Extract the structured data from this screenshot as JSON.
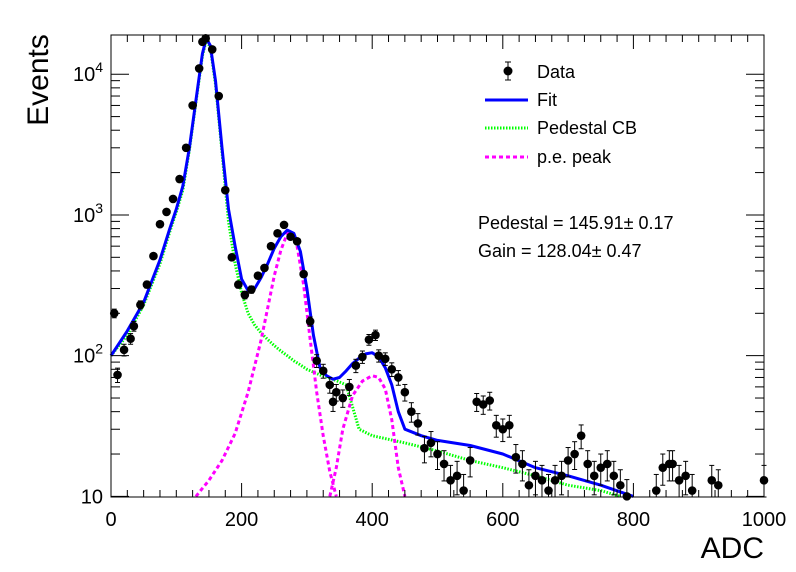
{
  "chart_data": {
    "type": "scatter",
    "xlabel": "ADC",
    "ylabel": "Events",
    "xlim": [
      0,
      1000
    ],
    "ylim": [
      9.9,
      19000
    ],
    "yscale": "log",
    "x_ticks": [
      "0",
      "200",
      "400",
      "600",
      "800",
      "1000"
    ],
    "y_ticks": [
      {
        "value": 10,
        "base": "10",
        "exp": ""
      },
      {
        "value": 100,
        "base": "10",
        "exp": "2"
      },
      {
        "value": 1000,
        "base": "10",
        "exp": "3"
      },
      {
        "value": 10000,
        "base": "10",
        "exp": "4"
      }
    ],
    "legend_position": "top-right",
    "legend": [
      {
        "label": "Data",
        "style": "marker",
        "color": "#000000"
      },
      {
        "label": "Fit",
        "style": "solid",
        "color": "#0000ff"
      },
      {
        "label": "Pedestal CB",
        "style": "dotted",
        "color": "#00ff00"
      },
      {
        "label": "p.e. peak",
        "style": "dashed",
        "color": "#ff00ff"
      }
    ],
    "annotations": [
      "Pedestal = 145.91± 0.17",
      "Gain = 128.04± 0.47"
    ],
    "series": [
      {
        "name": "Data",
        "type": "scatter",
        "color": "#000000",
        "points": [
          [
            5,
            200
          ],
          [
            10,
            73
          ],
          [
            20,
            110
          ],
          [
            30,
            132
          ],
          [
            35,
            162
          ],
          [
            45,
            230
          ],
          [
            55,
            320
          ],
          [
            65,
            510
          ],
          [
            75,
            860
          ],
          [
            85,
            1050
          ],
          [
            95,
            1300
          ],
          [
            105,
            1800
          ],
          [
            115,
            3000
          ],
          [
            125,
            6000
          ],
          [
            135,
            11000
          ],
          [
            140,
            17000
          ],
          [
            145,
            18000
          ],
          [
            155,
            15000
          ],
          [
            165,
            7000
          ],
          [
            175,
            1500
          ],
          [
            185,
            500
          ],
          [
            195,
            320
          ],
          [
            205,
            270
          ],
          [
            215,
            295
          ],
          [
            225,
            370
          ],
          [
            235,
            420
          ],
          [
            245,
            600
          ],
          [
            255,
            740
          ],
          [
            265,
            850
          ],
          [
            275,
            700
          ],
          [
            285,
            650
          ],
          [
            295,
            380
          ],
          [
            305,
            175
          ],
          [
            315,
            92
          ],
          [
            325,
            78
          ],
          [
            335,
            62
          ],
          [
            340,
            47
          ],
          [
            345,
            55
          ],
          [
            355,
            50
          ],
          [
            365,
            60
          ],
          [
            375,
            85
          ],
          [
            385,
            98
          ],
          [
            395,
            130
          ],
          [
            405,
            140
          ],
          [
            410,
            100
          ],
          [
            420,
            95
          ],
          [
            430,
            80
          ],
          [
            440,
            70
          ],
          [
            450,
            55
          ],
          [
            460,
            40
          ],
          [
            470,
            33
          ],
          [
            480,
            22
          ],
          [
            490,
            24
          ],
          [
            500,
            20
          ],
          [
            510,
            17
          ],
          [
            520,
            13
          ],
          [
            530,
            14
          ],
          [
            540,
            11
          ],
          [
            550,
            18
          ],
          [
            560,
            47
          ],
          [
            570,
            45
          ],
          [
            580,
            48
          ],
          [
            590,
            32
          ],
          [
            600,
            30
          ],
          [
            610,
            32
          ],
          [
            620,
            19
          ],
          [
            630,
            17
          ],
          [
            640,
            12
          ],
          [
            650,
            14
          ],
          [
            660,
            13
          ],
          [
            670,
            11
          ],
          [
            680,
            13
          ],
          [
            690,
            14
          ],
          [
            700,
            18
          ],
          [
            710,
            20
          ],
          [
            720,
            27
          ],
          [
            730,
            17
          ],
          [
            740,
            14
          ],
          [
            750,
            16
          ],
          [
            760,
            17
          ],
          [
            770,
            14
          ],
          [
            780,
            12
          ],
          [
            790,
            10
          ],
          [
            835,
            11
          ],
          [
            845,
            16
          ],
          [
            855,
            17
          ],
          [
            860,
            17
          ],
          [
            870,
            13
          ],
          [
            880,
            14
          ],
          [
            890,
            11
          ],
          [
            920,
            13
          ],
          [
            930,
            12
          ],
          [
            1000,
            13
          ]
        ]
      },
      {
        "name": "Fit",
        "type": "line",
        "color": "#0000ff",
        "points": [
          [
            0,
            100
          ],
          [
            25,
            150
          ],
          [
            50,
            240
          ],
          [
            75,
            480
          ],
          [
            90,
            800
          ],
          [
            100,
            1100
          ],
          [
            110,
            1600
          ],
          [
            120,
            3000
          ],
          [
            130,
            6500
          ],
          [
            140,
            14000
          ],
          [
            146,
            18000
          ],
          [
            152,
            16000
          ],
          [
            160,
            9000
          ],
          [
            170,
            3000
          ],
          [
            180,
            1100
          ],
          [
            190,
            600
          ],
          [
            200,
            350
          ],
          [
            210,
            290
          ],
          [
            220,
            300
          ],
          [
            230,
            360
          ],
          [
            240,
            450
          ],
          [
            250,
            580
          ],
          [
            260,
            700
          ],
          [
            270,
            780
          ],
          [
            280,
            740
          ],
          [
            290,
            550
          ],
          [
            300,
            300
          ],
          [
            310,
            140
          ],
          [
            320,
            82
          ],
          [
            330,
            72
          ],
          [
            340,
            68
          ],
          [
            350,
            70
          ],
          [
            360,
            78
          ],
          [
            370,
            88
          ],
          [
            380,
            96
          ],
          [
            390,
            103
          ],
          [
            400,
            105
          ],
          [
            410,
            98
          ],
          [
            420,
            82
          ],
          [
            430,
            62
          ],
          [
            440,
            40
          ],
          [
            450,
            30
          ],
          [
            475,
            27
          ],
          [
            500,
            25
          ],
          [
            550,
            23
          ],
          [
            600,
            20
          ],
          [
            650,
            16
          ],
          [
            700,
            14
          ],
          [
            750,
            12
          ],
          [
            800,
            10
          ]
        ]
      },
      {
        "name": "Pedestal CB",
        "type": "line",
        "color": "#00ff00",
        "points": [
          [
            0,
            100
          ],
          [
            25,
            140
          ],
          [
            50,
            230
          ],
          [
            75,
            450
          ],
          [
            90,
            760
          ],
          [
            100,
            1050
          ],
          [
            110,
            1500
          ],
          [
            120,
            2900
          ],
          [
            130,
            6300
          ],
          [
            140,
            13500
          ],
          [
            146,
            17500
          ],
          [
            152,
            15500
          ],
          [
            160,
            8500
          ],
          [
            170,
            2800
          ],
          [
            180,
            900
          ],
          [
            190,
            450
          ],
          [
            200,
            280
          ],
          [
            210,
            200
          ],
          [
            220,
            165
          ],
          [
            230,
            145
          ],
          [
            240,
            130
          ],
          [
            250,
            118
          ],
          [
            260,
            108
          ],
          [
            270,
            100
          ],
          [
            280,
            92
          ],
          [
            290,
            86
          ],
          [
            300,
            80
          ],
          [
            320,
            73
          ],
          [
            340,
            68
          ],
          [
            360,
            62
          ],
          [
            380,
            30
          ],
          [
            400,
            27
          ],
          [
            450,
            24
          ],
          [
            500,
            21
          ],
          [
            550,
            18
          ],
          [
            600,
            16
          ],
          [
            650,
            14
          ],
          [
            700,
            12
          ],
          [
            750,
            11
          ],
          [
            780,
            10
          ]
        ]
      },
      {
        "name": "p.e. peak",
        "type": "line",
        "color": "#ff00ff",
        "segments": [
          [
            [
              130,
              10
            ],
            [
              150,
              13
            ],
            [
              170,
              18
            ],
            [
              190,
              28
            ],
            [
              210,
              55
            ],
            [
              230,
              130
            ],
            [
              250,
              370
            ],
            [
              260,
              560
            ],
            [
              270,
              740
            ],
            [
              276,
              760
            ],
            [
              285,
              600
            ],
            [
              295,
              320
            ],
            [
              305,
              130
            ],
            [
              315,
              55
            ],
            [
              325,
              27
            ],
            [
              335,
              15
            ],
            [
              345,
              10
            ]
          ],
          [
            [
              335,
              10
            ],
            [
              345,
              16
            ],
            [
              355,
              30
            ],
            [
              370,
              52
            ],
            [
              385,
              66
            ],
            [
              400,
              72
            ],
            [
              410,
              70
            ],
            [
              420,
              58
            ],
            [
              430,
              35
            ],
            [
              440,
              16
            ],
            [
              450,
              10
            ]
          ]
        ]
      }
    ]
  }
}
